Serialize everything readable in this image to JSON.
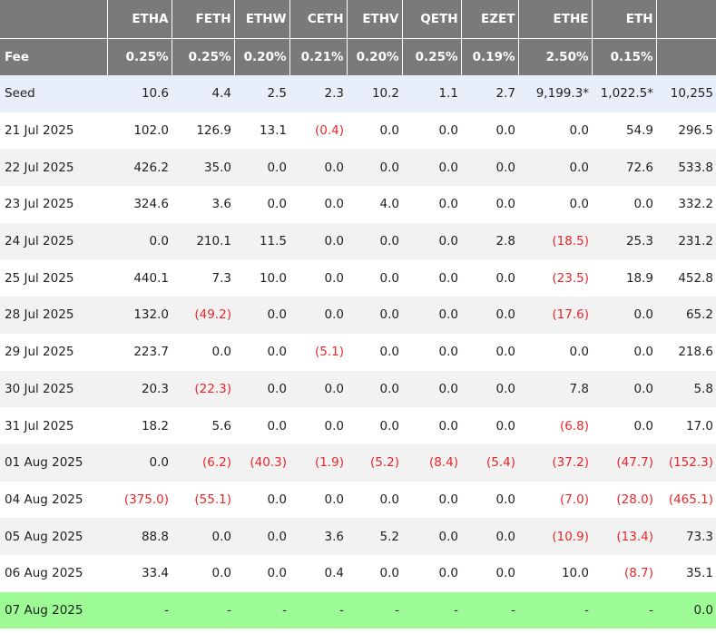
{
  "chart_data": {
    "type": "table",
    "columns": [
      "",
      "ETHA",
      "FETH",
      "ETHW",
      "CETH",
      "ETHV",
      "QETH",
      "EZET",
      "ETHE",
      "ETH",
      ""
    ],
    "fee_row": [
      "Fee",
      "0.25%",
      "0.25%",
      "0.20%",
      "0.21%",
      "0.20%",
      "0.25%",
      "0.19%",
      "2.50%",
      "0.15%",
      ""
    ],
    "rows": [
      {
        "kind": "seed",
        "cells": [
          "Seed",
          "10.6",
          "4.4",
          "2.5",
          "2.3",
          "10.2",
          "1.1",
          "2.7",
          "9,199.3*",
          "1,022.5*",
          "10,255"
        ]
      },
      {
        "kind": "odd",
        "cells": [
          "21 Jul 2025",
          "102.0",
          "126.9",
          "13.1",
          "(0.4)",
          "0.0",
          "0.0",
          "0.0",
          "0.0",
          "54.9",
          "296.5"
        ]
      },
      {
        "kind": "even",
        "cells": [
          "22 Jul 2025",
          "426.2",
          "35.0",
          "0.0",
          "0.0",
          "0.0",
          "0.0",
          "0.0",
          "0.0",
          "72.6",
          "533.8"
        ]
      },
      {
        "kind": "odd",
        "cells": [
          "23 Jul 2025",
          "324.6",
          "3.6",
          "0.0",
          "0.0",
          "4.0",
          "0.0",
          "0.0",
          "0.0",
          "0.0",
          "332.2"
        ]
      },
      {
        "kind": "even",
        "cells": [
          "24 Jul 2025",
          "0.0",
          "210.1",
          "11.5",
          "0.0",
          "0.0",
          "0.0",
          "2.8",
          "(18.5)",
          "25.3",
          "231.2"
        ]
      },
      {
        "kind": "odd",
        "cells": [
          "25 Jul 2025",
          "440.1",
          "7.3",
          "10.0",
          "0.0",
          "0.0",
          "0.0",
          "0.0",
          "(23.5)",
          "18.9",
          "452.8"
        ]
      },
      {
        "kind": "even",
        "cells": [
          "28 Jul 2025",
          "132.0",
          "(49.2)",
          "0.0",
          "0.0",
          "0.0",
          "0.0",
          "0.0",
          "(17.6)",
          "0.0",
          "65.2"
        ]
      },
      {
        "kind": "odd",
        "cells": [
          "29 Jul 2025",
          "223.7",
          "0.0",
          "0.0",
          "(5.1)",
          "0.0",
          "0.0",
          "0.0",
          "0.0",
          "0.0",
          "218.6"
        ]
      },
      {
        "kind": "even",
        "cells": [
          "30 Jul 2025",
          "20.3",
          "(22.3)",
          "0.0",
          "0.0",
          "0.0",
          "0.0",
          "0.0",
          "7.8",
          "0.0",
          "5.8"
        ]
      },
      {
        "kind": "odd",
        "cells": [
          "31 Jul 2025",
          "18.2",
          "5.6",
          "0.0",
          "0.0",
          "0.0",
          "0.0",
          "0.0",
          "(6.8)",
          "0.0",
          "17.0"
        ]
      },
      {
        "kind": "even",
        "cells": [
          "01 Aug 2025",
          "0.0",
          "(6.2)",
          "(40.3)",
          "(1.9)",
          "(5.2)",
          "(8.4)",
          "(5.4)",
          "(37.2)",
          "(47.7)",
          "(152.3)"
        ]
      },
      {
        "kind": "odd",
        "cells": [
          "04 Aug 2025",
          "(375.0)",
          "(55.1)",
          "0.0",
          "0.0",
          "0.0",
          "0.0",
          "0.0",
          "(7.0)",
          "(28.0)",
          "(465.1)"
        ]
      },
      {
        "kind": "even",
        "cells": [
          "05 Aug 2025",
          "88.8",
          "0.0",
          "0.0",
          "3.6",
          "5.2",
          "0.0",
          "0.0",
          "(10.9)",
          "(13.4)",
          "73.3"
        ]
      },
      {
        "kind": "odd",
        "cells": [
          "06 Aug 2025",
          "33.4",
          "0.0",
          "0.0",
          "0.4",
          "0.0",
          "0.0",
          "0.0",
          "10.0",
          "(8.7)",
          "35.1"
        ]
      },
      {
        "kind": "last",
        "cells": [
          "07 Aug 2025",
          "-",
          "-",
          "-",
          "-",
          "-",
          "-",
          "-",
          "-",
          "-",
          "0.0"
        ]
      }
    ],
    "colors": {
      "header_bg": "#7a7a7a",
      "seed_bg": "#e8eefa",
      "alt_row_bg": "#f2f2f2",
      "today_row_bg": "#9dfb95",
      "negative_text": "#e8262a"
    }
  }
}
